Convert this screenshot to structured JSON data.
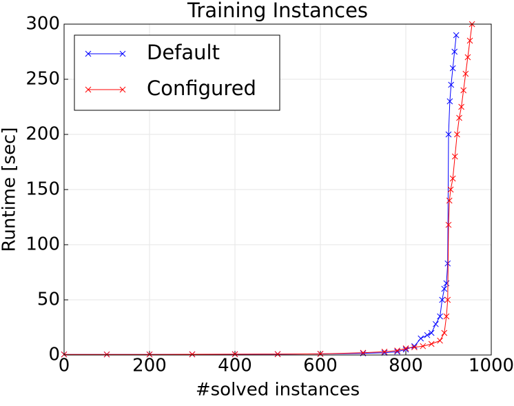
{
  "chart_data": {
    "type": "line",
    "title": "Training Instances",
    "x_label": "#solved instances",
    "y_label": "Runtime [sec]",
    "xlim": [
      0,
      1000
    ],
    "xticks": [
      0,
      200,
      400,
      600,
      800,
      1000
    ],
    "ylim": [
      0,
      300
    ],
    "yticks": [
      0,
      50,
      100,
      150,
      200,
      250,
      300
    ],
    "grid": true,
    "legend": "upper left",
    "series": [
      {
        "name": "Default",
        "color": "#0000ff",
        "x": [
          0,
          100,
          200,
          300,
          400,
          500,
          600,
          700,
          750,
          780,
          800,
          820,
          835,
          850,
          860,
          870,
          880,
          885,
          890,
          895,
          898,
          900,
          903,
          906,
          910,
          914,
          918
        ],
        "values": [
          0.5,
          0.5,
          0.5,
          0.6,
          0.7,
          0.8,
          1,
          1.5,
          2,
          3,
          5,
          8,
          15,
          18,
          20,
          28,
          35,
          50,
          60,
          65,
          83,
          200,
          230,
          245,
          260,
          275,
          290
        ]
      },
      {
        "name": "Configured",
        "color": "#ff0000",
        "x": [
          0,
          100,
          200,
          300,
          400,
          500,
          600,
          700,
          750,
          780,
          800,
          820,
          840,
          860,
          880,
          890,
          895,
          898,
          900,
          902,
          905,
          910,
          915,
          920,
          925,
          930,
          935,
          940,
          945,
          950,
          955
        ],
        "values": [
          0.5,
          0.5,
          0.5,
          0.6,
          0.7,
          0.8,
          1,
          2,
          3,
          4,
          6,
          7,
          8,
          10,
          13,
          20,
          35,
          50,
          118,
          140,
          150,
          160,
          180,
          200,
          215,
          225,
          240,
          255,
          270,
          285,
          300
        ]
      }
    ]
  }
}
